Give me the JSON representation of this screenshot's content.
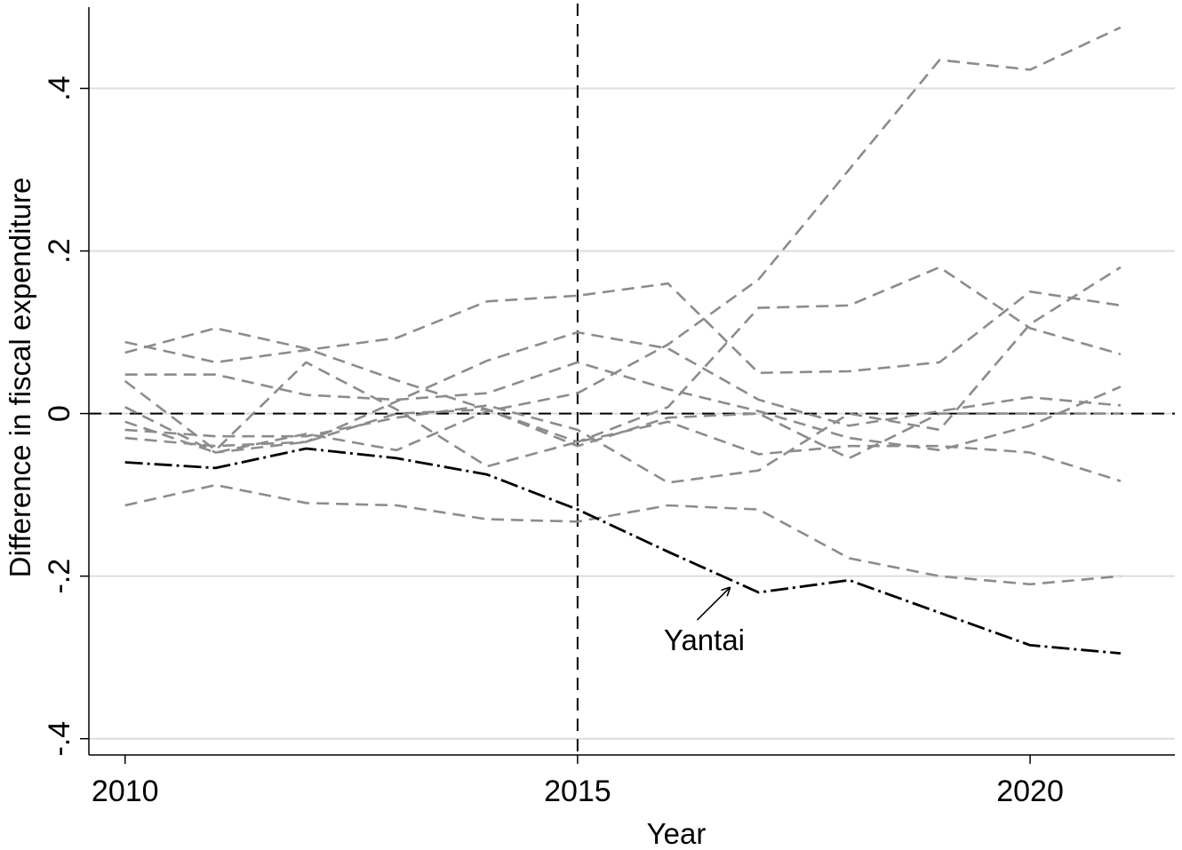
{
  "chart_data": {
    "type": "line",
    "xlabel": "Year",
    "ylabel": "Difference in fiscal expenditure",
    "xlim": [
      2009.6,
      2021.6
    ],
    "ylim": [
      -0.42,
      0.5
    ],
    "xticks": [
      {
        "value": 2010,
        "label": "2010"
      },
      {
        "value": 2015,
        "label": "2015"
      },
      {
        "value": 2020,
        "label": "2020"
      }
    ],
    "yticks": [
      {
        "value": -0.4,
        "label": "-.4"
      },
      {
        "value": -0.2,
        "label": "-.2"
      },
      {
        "value": 0,
        "label": "0"
      },
      {
        "value": 0.2,
        "label": ".2"
      },
      {
        "value": 0.4,
        "label": ".4"
      }
    ],
    "grid": "horizontal",
    "reference_lines": {
      "x": 2015,
      "y": 0
    },
    "x": [
      2010,
      2011,
      2012,
      2013,
      2014,
      2015,
      2016,
      2017,
      2018,
      2019,
      2020,
      2021
    ],
    "series": [
      {
        "values": [
          0.075,
          0.105,
          0.08,
          0.041,
          0.005,
          -0.035,
          0.008,
          0.13,
          0.133,
          0.18,
          0.105,
          0.073
        ]
      },
      {
        "values": [
          0.048,
          0.048,
          0.023,
          0.017,
          0.025,
          0.063,
          0.03,
          0.003,
          -0.03,
          -0.045,
          -0.015,
          0.033
        ]
      },
      {
        "values": [
          0.088,
          0.063,
          0.078,
          0.093,
          0.138,
          0.145,
          0.16,
          0.05,
          0.052,
          0.063,
          0.15,
          0.133
        ]
      },
      {
        "values": [
          0.04,
          -0.045,
          0.063,
          0.005,
          -0.065,
          -0.035,
          -0.01,
          -0.05,
          -0.04,
          -0.04,
          -0.048,
          -0.083
        ]
      },
      {
        "values": [
          -0.03,
          -0.04,
          -0.035,
          0.015,
          0.065,
          0.1,
          0.08,
          0.017,
          -0.015,
          0.003,
          0.02,
          0.01
        ]
      },
      {
        "values": [
          -0.01,
          -0.048,
          -0.025,
          -0.045,
          0.003,
          0.025,
          0.085,
          0.165,
          0.3,
          0.435,
          0.423,
          0.475
        ]
      },
      {
        "values": [
          -0.02,
          -0.028,
          -0.028,
          -0.005,
          0.01,
          -0.02,
          -0.085,
          -0.07,
          0.0,
          -0.02,
          0.11,
          0.18
        ]
      },
      {
        "values": [
          0.008,
          -0.048,
          -0.035,
          0.0,
          0.005,
          -0.04,
          -0.005,
          0.0,
          -0.055,
          0.0,
          0.0,
          0.0
        ]
      },
      {
        "values": [
          -0.113,
          -0.088,
          -0.11,
          -0.113,
          -0.13,
          -0.133,
          -0.113,
          -0.118,
          -0.178,
          -0.2,
          -0.21,
          -0.2
        ]
      }
    ],
    "highlight": {
      "name": "Yantai",
      "values": [
        -0.06,
        -0.067,
        -0.043,
        -0.055,
        -0.075,
        -0.118,
        -0.17,
        -0.22,
        -0.205,
        -0.245,
        -0.285,
        -0.295
      ]
    },
    "annotation": {
      "text": "Yantai",
      "x": 2016.4,
      "y": -0.278,
      "arrow_to": [
        2016.68,
        -0.21
      ]
    },
    "colors": {
      "series": "#8c8c8c",
      "highlight": "#000000",
      "grid": "#dcdcdc",
      "axis": "#000000"
    }
  }
}
